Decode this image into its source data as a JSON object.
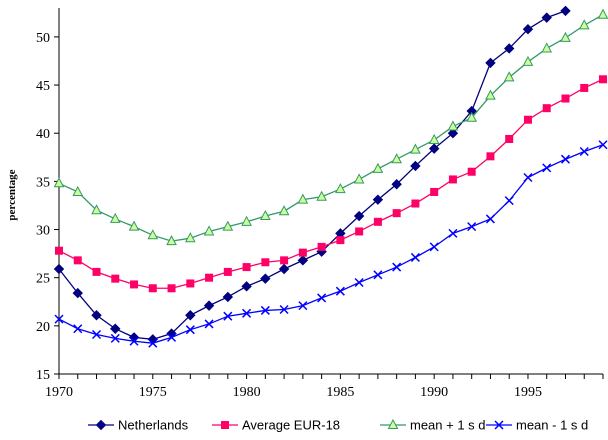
{
  "chart_data": {
    "type": "line",
    "title": "",
    "xlabel": "",
    "ylabel": "percentage",
    "xlim": [
      1970,
      1999
    ],
    "ylim": [
      15,
      53
    ],
    "x_ticks": [
      1970,
      1975,
      1980,
      1985,
      1990,
      1995
    ],
    "y_ticks": [
      15,
      20,
      25,
      30,
      35,
      40,
      45,
      50
    ],
    "grid": false,
    "legend_position": "bottom",
    "x": [
      1970,
      1971,
      1972,
      1973,
      1974,
      1975,
      1976,
      1977,
      1978,
      1979,
      1980,
      1981,
      1982,
      1983,
      1984,
      1985,
      1986,
      1987,
      1988,
      1989,
      1990,
      1991,
      1992,
      1993,
      1994,
      1995,
      1996,
      1997,
      1998,
      1999
    ],
    "series": [
      {
        "name": "Netherlands",
        "color": "#000080",
        "marker": "diamond",
        "values": [
          25.9,
          23.4,
          21.1,
          19.7,
          18.8,
          18.6,
          19.2,
          21.1,
          22.1,
          23.0,
          24.1,
          24.9,
          25.9,
          26.8,
          27.7,
          29.6,
          31.4,
          33.1,
          34.7,
          36.6,
          38.4,
          40.0,
          42.3,
          47.3,
          48.8,
          50.8,
          52.0,
          52.7,
          null,
          null
        ]
      },
      {
        "name": "Average EUR-18",
        "color": "#ff0066",
        "marker": "square",
        "values": [
          27.8,
          26.8,
          25.6,
          24.9,
          24.3,
          23.9,
          23.9,
          24.4,
          25.0,
          25.6,
          26.1,
          26.6,
          26.8,
          27.6,
          28.2,
          28.9,
          29.8,
          30.8,
          31.7,
          32.7,
          33.9,
          35.2,
          36.0,
          37.6,
          39.4,
          41.4,
          42.6,
          43.6,
          44.7,
          45.6
        ]
      },
      {
        "name": "mean + 1 s d",
        "color": "#339966",
        "marker": "triangle",
        "values": [
          34.8,
          33.9,
          32.0,
          31.1,
          30.3,
          29.4,
          28.8,
          29.1,
          29.8,
          30.3,
          30.8,
          31.4,
          31.9,
          33.1,
          33.4,
          34.2,
          35.2,
          36.3,
          37.3,
          38.3,
          39.3,
          40.7,
          41.6,
          43.9,
          45.8,
          47.4,
          48.8,
          49.9,
          51.2,
          52.3
        ]
      },
      {
        "name": "mean - 1 s d",
        "color": "#0000ff",
        "marker": "x",
        "values": [
          20.7,
          19.7,
          19.1,
          18.7,
          18.4,
          18.2,
          18.8,
          19.6,
          20.2,
          21.0,
          21.3,
          21.6,
          21.7,
          22.1,
          22.9,
          23.6,
          24.5,
          25.3,
          26.1,
          27.1,
          28.2,
          29.6,
          30.3,
          31.1,
          33.0,
          35.4,
          36.4,
          37.3,
          38.1,
          38.8
        ]
      }
    ]
  }
}
